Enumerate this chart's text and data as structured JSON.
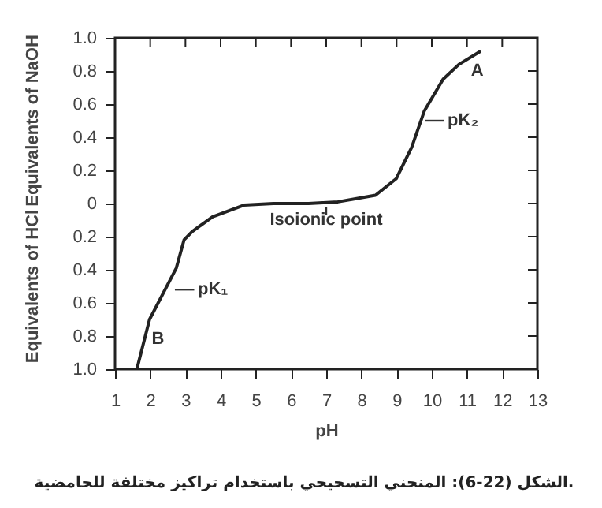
{
  "chart_data": {
    "type": "line",
    "xlabel": "pH",
    "ylabel": "Equivalents of NaOH",
    "x": [
      1.62,
      1.98,
      2.74,
      2.96,
      3.19,
      3.77,
      4.66,
      5.5,
      6.5,
      7.33,
      8.4,
      8.99,
      9.43,
      9.79,
      10.32,
      10.77,
      11.39
    ],
    "series": [
      {
        "color": "#222222",
        "values": [
          -1.0,
          -0.7,
          -0.39,
          -0.22,
          -0.17,
          -0.08,
          -0.01,
          0,
          0,
          0.01,
          0.05,
          0.15,
          0.34,
          0.56,
          0.75,
          0.84,
          0.92
        ]
      }
    ],
    "xlim": [
      1,
      13
    ],
    "xticks": [
      1,
      2,
      3,
      4,
      5,
      6,
      7,
      8,
      9,
      10,
      11,
      12,
      13
    ],
    "ylim": [
      -1,
      1
    ],
    "yticks": [
      {
        "value": -1,
        "label": "1.0"
      },
      {
        "value": -0.8,
        "label": "0.8"
      },
      {
        "value": -0.6,
        "label": "0.6"
      },
      {
        "value": -0.4,
        "label": "0.4"
      },
      {
        "value": -0.2,
        "label": "0.2"
      },
      0,
      0.2,
      0.4,
      0.6,
      0.8,
      {
        "value": 1,
        "label": "1.0"
      }
    ],
    "marker": "none",
    "line_style": "solid",
    "annotations": [
      "Equivalents of HCl",
      "الشكل (22-6): المنحني التسحيحي باستخدام تراكيز مختلفة للحامضية.",
      "A",
      "B",
      {
        "text": "pK₁",
        "x": 2.6,
        "y": -0.52
      },
      {
        "text": "pK₂",
        "x": 9.7,
        "y": 0.5
      },
      {
        "text": "Isoionic point",
        "x": 7,
        "y": 0
      }
    ]
  }
}
